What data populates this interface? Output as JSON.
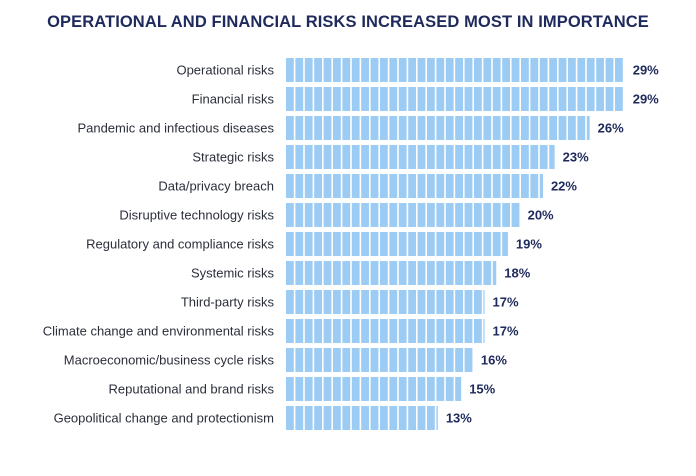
{
  "chart_data": {
    "type": "bar",
    "orientation": "horizontal",
    "title": "OPERATIONAL AND FINANCIAL RISKS INCREASED MOST IN IMPORTANCE",
    "categories": [
      "Operational risks",
      "Financial risks",
      "Pandemic and infectious diseases",
      "Strategic risks",
      "Data/privacy breach",
      "Disruptive technology risks",
      "Regulatory and compliance risks",
      "Systemic risks",
      "Third-party risks",
      "Climate change and environmental risks",
      "Macroeconomic/business cycle risks",
      "Reputational and brand risks",
      "Geopolitical change and protectionism"
    ],
    "values": [
      29,
      29,
      26,
      23,
      22,
      20,
      19,
      18,
      17,
      17,
      16,
      15,
      13
    ],
    "value_labels": [
      "29%",
      "29%",
      "26%",
      "23%",
      "22%",
      "20%",
      "19%",
      "18%",
      "17%",
      "17%",
      "16%",
      "15%",
      "13%"
    ],
    "unit": "%",
    "bar_color": "#9cccf3",
    "text_color": "#1f2a5c",
    "label_color": "#2b2f3a",
    "grid": false,
    "legend": "none"
  }
}
